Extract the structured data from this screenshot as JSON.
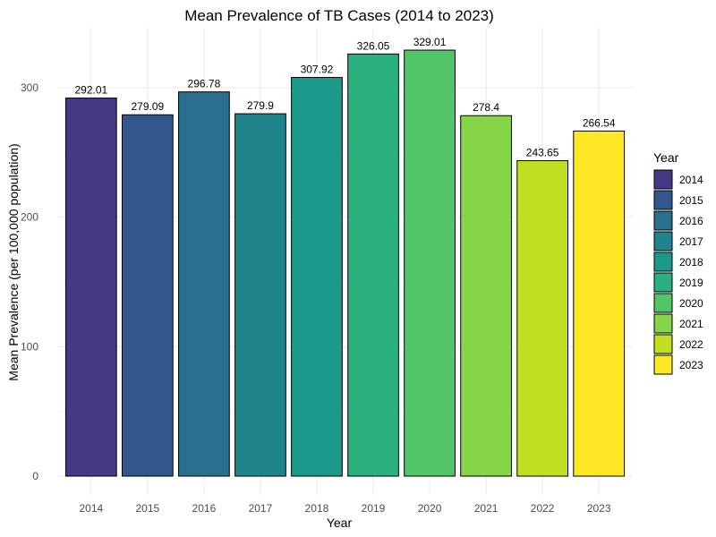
{
  "chart_data": {
    "type": "bar",
    "title": "Mean Prevalence of TB Cases (2014 to 2023)",
    "xlabel": "Year",
    "ylabel": "Mean Prevalence (per 100,000 population)",
    "categories": [
      "2014",
      "2015",
      "2016",
      "2017",
      "2018",
      "2019",
      "2020",
      "2021",
      "2022",
      "2023"
    ],
    "values": [
      292.01,
      279.09,
      296.78,
      279.9,
      307.92,
      326.05,
      329.01,
      278.4,
      243.65,
      266.54
    ],
    "data_labels": [
      "292.01",
      "279.09",
      "296.78",
      "279.9",
      "307.92",
      "326.05",
      "329.01",
      "278.4",
      "243.65",
      "266.54"
    ],
    "yticks": [
      0,
      100,
      200,
      300
    ],
    "ylim": [
      0,
      345.5
    ],
    "grid": true,
    "legend": {
      "title": "Year",
      "placement": "right",
      "entries": [
        "2014",
        "2015",
        "2016",
        "2017",
        "2018",
        "2019",
        "2020",
        "2021",
        "2022",
        "2023"
      ]
    },
    "colors": [
      "#443a83",
      "#31578d",
      "#2a6f8e",
      "#20848d",
      "#1b9a89",
      "#2bb07f",
      "#52c569",
      "#86d549",
      "#c2df22",
      "#fde725"
    ]
  }
}
